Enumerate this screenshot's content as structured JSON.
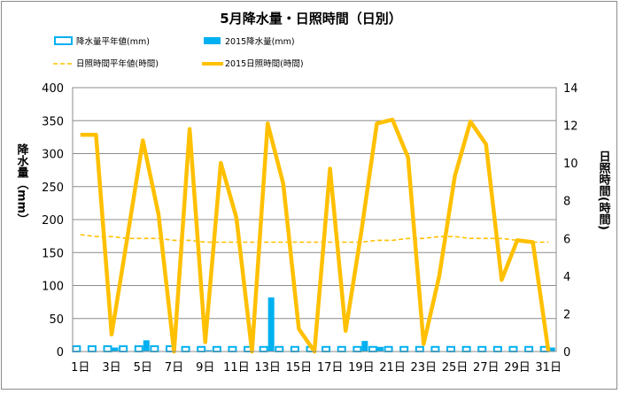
{
  "chart_data": {
    "type": "bar+line",
    "title": "5月降水量・日照時間（日別）",
    "ylabel_left": "降水量（mm）",
    "ylabel_right": "日照時間(時間)",
    "y_left_range": [
      0,
      400
    ],
    "y_left_ticks": [
      "0",
      "50",
      "100",
      "150",
      "200",
      "250",
      "300",
      "350",
      "400"
    ],
    "y_right_range": [
      0,
      14
    ],
    "y_right_ticks": [
      "0",
      "2",
      "4",
      "6",
      "8",
      "10",
      "12",
      "14"
    ],
    "x_tick_labels": [
      "1日",
      "3日",
      "5日",
      "7日",
      "9日",
      "11日",
      "13日",
      "15日",
      "17日",
      "19日",
      "21日",
      "23日",
      "25日",
      "27日",
      "29日",
      "31日"
    ],
    "days": [
      1,
      2,
      3,
      4,
      5,
      6,
      7,
      8,
      9,
      10,
      11,
      12,
      13,
      14,
      15,
      16,
      17,
      18,
      19,
      20,
      21,
      22,
      23,
      24,
      25,
      26,
      27,
      28,
      29,
      30,
      31
    ],
    "grid": true,
    "legend": [
      {
        "label": "降水量平年値(mm)",
        "style": "hollow-bar",
        "color": "#00b0f0"
      },
      {
        "label": "2015降水量(mm)",
        "style": "bar",
        "color": "#00b0f0"
      },
      {
        "label": "日照時間平年値(時間)",
        "style": "dashed-line",
        "color": "#ffc000"
      },
      {
        "label": "2015日照時間(時間)",
        "style": "line",
        "color": "#ffc000"
      }
    ],
    "series": [
      {
        "name": "降水量平年値(mm)",
        "axis": "left",
        "type": "bar-hollow",
        "color": "#00b0f0",
        "values": [
          8,
          8,
          8,
          8,
          8,
          8,
          8,
          7,
          7,
          7,
          7,
          7,
          7,
          7,
          7,
          7,
          7,
          7,
          7,
          7,
          7,
          7,
          7,
          7,
          7,
          7,
          7,
          7,
          7,
          7,
          7
        ]
      },
      {
        "name": "2015降水量(mm)",
        "axis": "left",
        "type": "bar",
        "color": "#00b0f0",
        "values": [
          0,
          0,
          6,
          0,
          17,
          0,
          0,
          0,
          2,
          0,
          0,
          0,
          82,
          0,
          0,
          0,
          0,
          0,
          16,
          7,
          0,
          0,
          0,
          0,
          0,
          0,
          0,
          0,
          0,
          0,
          6
        ]
      },
      {
        "name": "日照時間平年値(時間)",
        "axis": "right",
        "type": "line-dashed",
        "color": "#ffc000",
        "values": [
          6.2,
          6.1,
          6.1,
          6.0,
          6.0,
          6.0,
          5.9,
          5.9,
          5.8,
          5.8,
          5.8,
          5.8,
          5.8,
          5.8,
          5.8,
          5.8,
          5.8,
          5.8,
          5.8,
          5.9,
          5.9,
          6.0,
          6.0,
          6.1,
          6.1,
          6.0,
          6.0,
          6.0,
          5.9,
          5.8,
          5.8
        ]
      },
      {
        "name": "2015日照時間(時間)",
        "axis": "right",
        "type": "line",
        "color": "#ffc000",
        "values": [
          11.5,
          11.5,
          0.9,
          6.0,
          11.2,
          7.3,
          0.0,
          11.8,
          0.5,
          10.0,
          7.1,
          0.0,
          12.1,
          8.9,
          1.2,
          0.0,
          9.7,
          1.1,
          6.3,
          12.1,
          12.3,
          10.3,
          0.4,
          4.0,
          9.3,
          12.2,
          11.0,
          3.8,
          5.9,
          5.8,
          0.0
        ]
      }
    ]
  }
}
